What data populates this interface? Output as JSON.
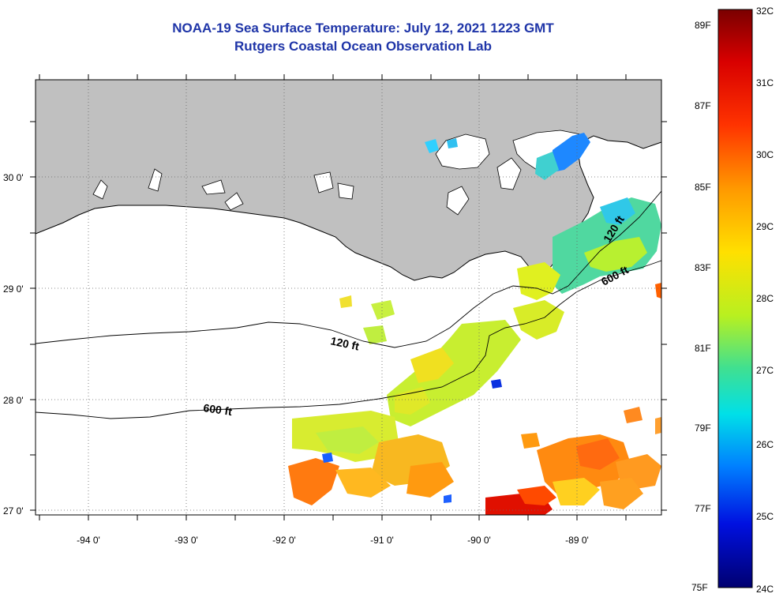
{
  "title": {
    "line1": "NOAA-19 Sea Surface Temperature:  July 12, 2021 1223 GMT",
    "line2": "Rutgers Coastal Ocean Observation Lab"
  },
  "map": {
    "lon_labels": [
      "-94 0'",
      "-93 0'",
      "-92 0'",
      "-91 0'",
      "-90 0'",
      "-89 0'"
    ],
    "lat_labels": [
      "30 0'",
      "29 0'",
      "28 0'",
      "27 0'"
    ],
    "contour_labels": [
      "120 ft",
      "600 ft",
      "600 ft",
      "120 ft"
    ],
    "colors": {
      "land": "#c0c0c0",
      "ocean_nodata": "#ffffff",
      "coastline": "#000000"
    }
  },
  "colorbar": {
    "celsius": [
      "32C",
      "31C",
      "30C",
      "29C",
      "28C",
      "27C",
      "26C",
      "25C",
      "24C"
    ],
    "fahrenheit": [
      "89F",
      "87F",
      "85F",
      "83F",
      "81F",
      "79F",
      "77F",
      "75F"
    ],
    "gradient": [
      "#7a0000",
      "#e00000",
      "#ff6a00",
      "#ffd200",
      "#e8f000",
      "#60e070",
      "#00e6e6",
      "#1a6aff",
      "#0000c8",
      "#00006e"
    ]
  }
}
